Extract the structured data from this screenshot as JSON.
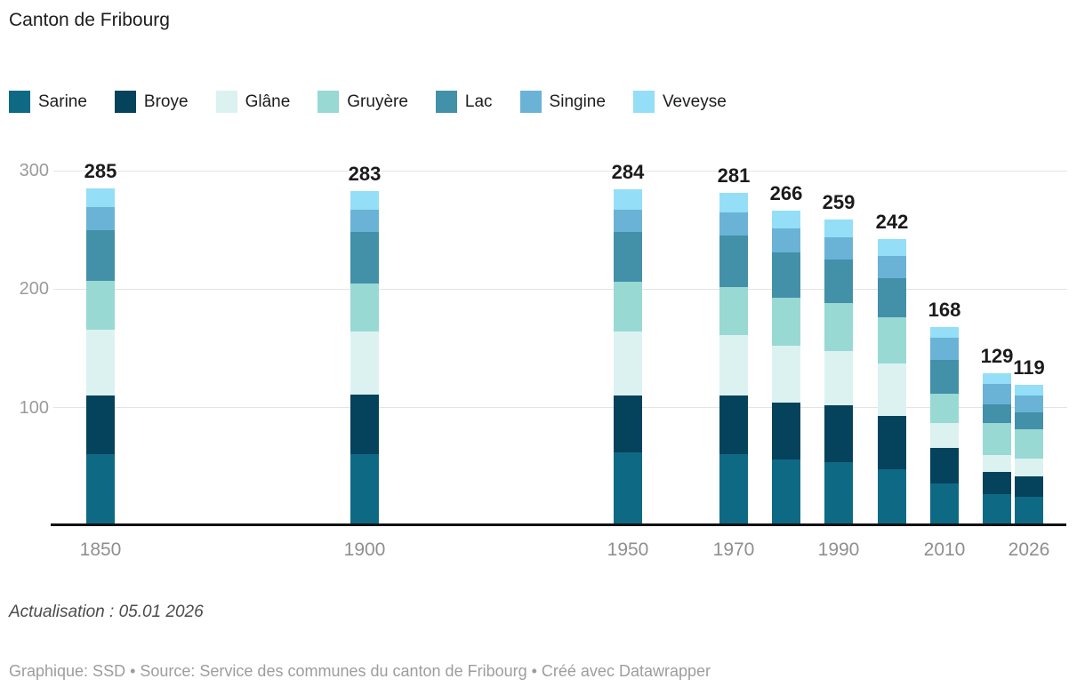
{
  "title": "Canton de Fribourg",
  "legend": {
    "items": [
      {
        "id": "sarine",
        "label": "Sarine",
        "color": "#0e6a84"
      },
      {
        "id": "broye",
        "label": "Broye",
        "color": "#05425c"
      },
      {
        "id": "glane",
        "label": "Glâne",
        "color": "#dcf2f1"
      },
      {
        "id": "gruyere",
        "label": "Gruyère",
        "color": "#98d9d4"
      },
      {
        "id": "lac",
        "label": "Lac",
        "color": "#4390a9"
      },
      {
        "id": "singine",
        "label": "Singine",
        "color": "#6ab3d6"
      },
      {
        "id": "veveyse",
        "label": "Veveyse",
        "color": "#94def8"
      }
    ]
  },
  "chart_data": {
    "type": "bar",
    "stacked": true,
    "title": "Canton de Fribourg",
    "xlabel": "",
    "ylabel": "",
    "ylim": [
      0,
      300
    ],
    "y_ticks": [
      100,
      200,
      300
    ],
    "grid": true,
    "legend_position": "top",
    "x": [
      1850,
      1900,
      1950,
      1970,
      1980,
      1990,
      2000,
      2010,
      2020,
      2026
    ],
    "x_axis_labels": [
      "1850",
      "1900",
      "1950",
      "1970",
      "1990",
      "2010",
      "2026"
    ],
    "totals": [
      285,
      283,
      284,
      281,
      266,
      259,
      242,
      168,
      129,
      119
    ],
    "series": [
      {
        "id": "sarine",
        "name": "Sarine",
        "color": "#0e6a84",
        "values": [
          61,
          61,
          62,
          61,
          56,
          54,
          48,
          36,
          27,
          25
        ]
      },
      {
        "id": "broye",
        "name": "Broye",
        "color": "#05425c",
        "values": [
          49,
          50,
          48,
          49,
          48,
          48,
          45,
          30,
          19,
          17
        ]
      },
      {
        "id": "glane",
        "name": "Glâne",
        "color": "#dcf2f1",
        "values": [
          56,
          53,
          54,
          51,
          48,
          46,
          44,
          21,
          14,
          15
        ]
      },
      {
        "id": "gruyere",
        "name": "Gruyère",
        "color": "#98d9d4",
        "values": [
          41,
          41,
          42,
          41,
          41,
          40,
          39,
          25,
          27,
          25
        ]
      },
      {
        "id": "lac",
        "name": "Lac",
        "color": "#4390a9",
        "values": [
          43,
          43,
          42,
          43,
          38,
          37,
          33,
          28,
          16,
          14
        ]
      },
      {
        "id": "singine",
        "name": "Singine",
        "color": "#6ab3d6",
        "values": [
          19,
          19,
          19,
          20,
          20,
          19,
          19,
          19,
          17,
          14
        ]
      },
      {
        "id": "veveyse",
        "name": "Veveyse",
        "color": "#94def8",
        "values": [
          16,
          16,
          17,
          16,
          15,
          15,
          14,
          9,
          9,
          9
        ]
      }
    ]
  },
  "footer": {
    "update_note": "Actualisation : 05.01 2026",
    "credit": "Graphique: SSD • Source: Service des communes du canton de Fribourg • Créé avec Datawrapper"
  }
}
